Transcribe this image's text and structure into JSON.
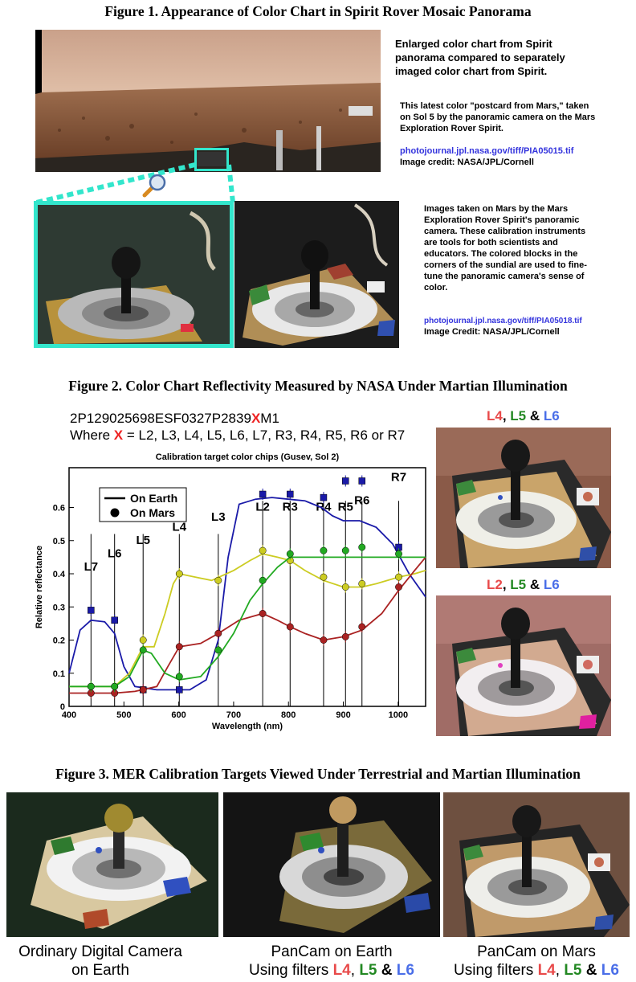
{
  "fig1": {
    "title": "Figure 1.  Appearance of Color Chart in Spirit Rover Mosaic Panorama",
    "cap1": "Enlarged color chart from Spirit panorama compared to separately imaged color chart from Spirit.",
    "cap2": "This latest color \"postcard from Mars,\" taken on Sol 5 by the panoramic camera on the Mars Exploration Rover Spirit.",
    "link1": "photojournal.jpl.nasa.gov/tiff/PIA05015.tif",
    "credit1": "Image credit: NASA/JPL/Cornell",
    "cap3": "Images taken on Mars by the Mars Exploration Rover Spirit's panoramic camera. These calibration instruments are tools for both scientists and educators. The colored blocks in the corners of the sundial are used to fine-tune the panoramic camera's sense of color.",
    "link2": "photojournal.jpl.nasa.gov/tiff/PIA05018.tif",
    "credit2": "Image Credit: NASA/JPL/Cornell"
  },
  "fig2": {
    "title": "Figure 2.  Color Chart Reflectivity Measured by NASA Under Martian Illumination",
    "code_a": "2P129025698ESF0327P2839",
    "code_x": "X",
    "code_b": "M1",
    "where_a": "Where ",
    "where_x": "X",
    "where_b": " = L2, L3, L4, L5, L6, L7, R3, R4, R5, R6 or R7",
    "img1_filters": {
      "a": "L4",
      "sep1": ", ",
      "b": "L5",
      "sep2": " & ",
      "c": "L6"
    },
    "img2_filters": {
      "a": "L2",
      "sep1": ", ",
      "b": "L5",
      "sep2": " & ",
      "c": "L6"
    }
  },
  "chart_data": {
    "type": "line",
    "title": "Calibration target color chips (Gusev, Sol 2)",
    "xlabel": "Wavelength (nm)",
    "ylabel": "Relative reflectance",
    "xlim": [
      400,
      1050
    ],
    "ylim": [
      0,
      0.72
    ],
    "xticks": [
      "400",
      "500",
      "600",
      "700",
      "800",
      "900",
      "1000"
    ],
    "yticks": [
      "0",
      "0.1",
      "0.2",
      "0.3",
      "0.4",
      "0.5",
      "0.6"
    ],
    "legend": [
      "On Earth",
      "On Mars"
    ],
    "legend_position": "top-left",
    "filters": [
      {
        "name": "L7",
        "x": 440
      },
      {
        "name": "L6",
        "x": 483
      },
      {
        "name": "L5",
        "x": 535
      },
      {
        "name": "L4",
        "x": 601
      },
      {
        "name": "L3",
        "x": 672
      },
      {
        "name": "L2",
        "x": 753
      },
      {
        "name": "R3",
        "x": 803
      },
      {
        "name": "R4",
        "x": 864
      },
      {
        "name": "R5",
        "x": 904
      },
      {
        "name": "R6",
        "x": 934
      },
      {
        "name": "R7",
        "x": 1001
      }
    ],
    "series": [
      {
        "color": "#1a1aa8",
        "earth": [
          [
            400,
            0.1
          ],
          [
            420,
            0.23
          ],
          [
            440,
            0.26
          ],
          [
            465,
            0.255
          ],
          [
            483,
            0.22
          ],
          [
            500,
            0.12
          ],
          [
            520,
            0.06
          ],
          [
            560,
            0.05
          ],
          [
            620,
            0.05
          ],
          [
            650,
            0.08
          ],
          [
            672,
            0.2
          ],
          [
            690,
            0.45
          ],
          [
            710,
            0.61
          ],
          [
            740,
            0.625
          ],
          [
            770,
            0.63
          ],
          [
            800,
            0.625
          ],
          [
            830,
            0.62
          ],
          [
            860,
            0.6
          ],
          [
            880,
            0.575
          ],
          [
            900,
            0.56
          ],
          [
            930,
            0.56
          ],
          [
            960,
            0.54
          ],
          [
            990,
            0.49
          ],
          [
            1020,
            0.4
          ],
          [
            1050,
            0.33
          ]
        ],
        "mars": [
          [
            440,
            0.29
          ],
          [
            483,
            0.26
          ],
          [
            535,
            0.05
          ],
          [
            601,
            0.05
          ],
          [
            753,
            0.64
          ],
          [
            803,
            0.64
          ],
          [
            864,
            0.63
          ],
          [
            904,
            0.68
          ],
          [
            934,
            0.68
          ],
          [
            1001,
            0.48
          ]
        ]
      },
      {
        "color": "#cccc22",
        "earth": [
          [
            400,
            0.06
          ],
          [
            440,
            0.06
          ],
          [
            483,
            0.06
          ],
          [
            510,
            0.1
          ],
          [
            535,
            0.18
          ],
          [
            555,
            0.18
          ],
          [
            575,
            0.28
          ],
          [
            590,
            0.37
          ],
          [
            601,
            0.4
          ],
          [
            630,
            0.39
          ],
          [
            660,
            0.38
          ],
          [
            700,
            0.41
          ],
          [
            730,
            0.44
          ],
          [
            753,
            0.46
          ],
          [
            780,
            0.45
          ],
          [
            803,
            0.44
          ],
          [
            830,
            0.41
          ],
          [
            864,
            0.38
          ],
          [
            900,
            0.36
          ],
          [
            934,
            0.36
          ],
          [
            960,
            0.37
          ],
          [
            1001,
            0.39
          ],
          [
            1030,
            0.4
          ],
          [
            1050,
            0.41
          ]
        ],
        "mars": [
          [
            440,
            0.06
          ],
          [
            483,
            0.06
          ],
          [
            535,
            0.2
          ],
          [
            601,
            0.4
          ],
          [
            672,
            0.38
          ],
          [
            753,
            0.47
          ],
          [
            803,
            0.44
          ],
          [
            864,
            0.39
          ],
          [
            904,
            0.36
          ],
          [
            934,
            0.37
          ],
          [
            1001,
            0.39
          ]
        ]
      },
      {
        "color": "#aa2222",
        "earth": [
          [
            400,
            0.04
          ],
          [
            440,
            0.04
          ],
          [
            483,
            0.04
          ],
          [
            520,
            0.045
          ],
          [
            560,
            0.06
          ],
          [
            580,
            0.12
          ],
          [
            601,
            0.18
          ],
          [
            640,
            0.19
          ],
          [
            672,
            0.22
          ],
          [
            710,
            0.26
          ],
          [
            753,
            0.28
          ],
          [
            780,
            0.26
          ],
          [
            803,
            0.24
          ],
          [
            830,
            0.22
          ],
          [
            864,
            0.2
          ],
          [
            900,
            0.21
          ],
          [
            934,
            0.23
          ],
          [
            970,
            0.28
          ],
          [
            1001,
            0.35
          ],
          [
            1030,
            0.41
          ],
          [
            1050,
            0.45
          ]
        ],
        "mars": [
          [
            440,
            0.04
          ],
          [
            483,
            0.04
          ],
          [
            535,
            0.05
          ],
          [
            601,
            0.18
          ],
          [
            672,
            0.22
          ],
          [
            753,
            0.28
          ],
          [
            803,
            0.24
          ],
          [
            864,
            0.2
          ],
          [
            904,
            0.21
          ],
          [
            934,
            0.24
          ],
          [
            1001,
            0.36
          ]
        ]
      },
      {
        "color": "#22aa22",
        "earth": [
          [
            400,
            0.06
          ],
          [
            440,
            0.06
          ],
          [
            483,
            0.06
          ],
          [
            510,
            0.09
          ],
          [
            535,
            0.17
          ],
          [
            550,
            0.16
          ],
          [
            575,
            0.1
          ],
          [
            601,
            0.08
          ],
          [
            640,
            0.09
          ],
          [
            672,
            0.15
          ],
          [
            700,
            0.22
          ],
          [
            730,
            0.32
          ],
          [
            753,
            0.37
          ],
          [
            780,
            0.42
          ],
          [
            803,
            0.45
          ],
          [
            840,
            0.45
          ],
          [
            864,
            0.45
          ],
          [
            904,
            0.45
          ],
          [
            934,
            0.45
          ],
          [
            1001,
            0.45
          ],
          [
            1050,
            0.45
          ]
        ],
        "mars": [
          [
            440,
            0.06
          ],
          [
            483,
            0.06
          ],
          [
            535,
            0.17
          ],
          [
            601,
            0.09
          ],
          [
            672,
            0.17
          ],
          [
            753,
            0.38
          ],
          [
            803,
            0.46
          ],
          [
            864,
            0.47
          ],
          [
            904,
            0.47
          ],
          [
            934,
            0.48
          ],
          [
            1001,
            0.46
          ]
        ]
      }
    ]
  },
  "fig3": {
    "title": "Figure 3.  MER Calibration Targets Viewed Under Terrestrial and Martian Illumination",
    "cap_left_1": "Ordinary Digital Camera",
    "cap_left_2": "on Earth",
    "cap_mid_1": "PanCam on Earth",
    "cap_mid_pre": "Using filters ",
    "cap_right_1": "PanCam on Mars",
    "cap_right_pre": "Using filters ",
    "filters": {
      "a": "L4",
      "sep1": ", ",
      "b": "L5",
      "sep2": " & ",
      "c": "L6"
    }
  }
}
